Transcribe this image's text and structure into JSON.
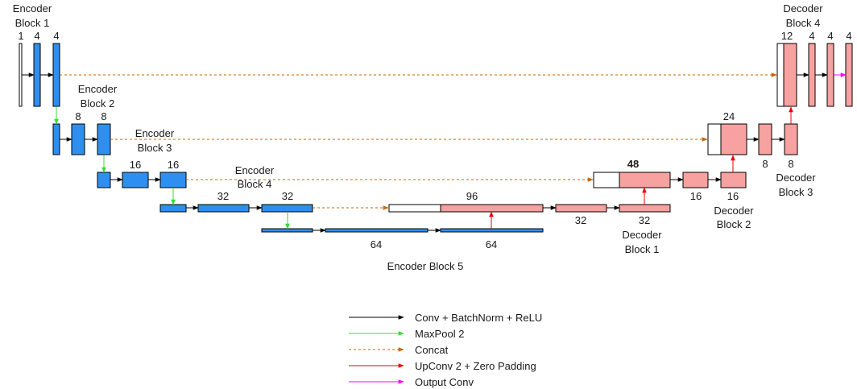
{
  "blocks": {
    "enc1": "Encoder Block 1",
    "enc2": "Encoder Block 2",
    "enc3": "Encoder Block 3",
    "enc4": "Encoder Block 4",
    "enc5": "Encoder Block 5",
    "dec1": "Decoder Block 1",
    "dec2": "Decoder Block 2",
    "dec3": "Decoder Block 3",
    "dec4": "Decoder Block 4"
  },
  "channels": {
    "e1a": "1",
    "e1b": "4",
    "e1c": "4",
    "e2b": "8",
    "e2c": "8",
    "e3b": "16",
    "e3c": "16",
    "e4b": "32",
    "e4c": "32",
    "e5b": "64",
    "e5c": "64",
    "d1cat": "96",
    "d1b": "32",
    "d1c": "32",
    "d2cat": "48",
    "d2b": "16",
    "d2c": "16",
    "d3cat": "24",
    "d3b": "8",
    "d3c": "8",
    "d4cat": "12",
    "d4b": "4",
    "d4c": "4",
    "d4o": "4"
  },
  "legend": [
    {
      "label": "Conv + BatchNorm + ReLU",
      "color": "#000000",
      "style": "solid"
    },
    {
      "label": "MaxPool 2",
      "color": "#33dd33",
      "style": "solid"
    },
    {
      "label": "Concat",
      "color": "#cc6600",
      "style": "dashed"
    },
    {
      "label": "UpConv 2 + Zero Padding",
      "color": "#ee0000",
      "style": "solid"
    },
    {
      "label": "Output Conv",
      "color": "#ff00ff",
      "style": "solid"
    }
  ]
}
